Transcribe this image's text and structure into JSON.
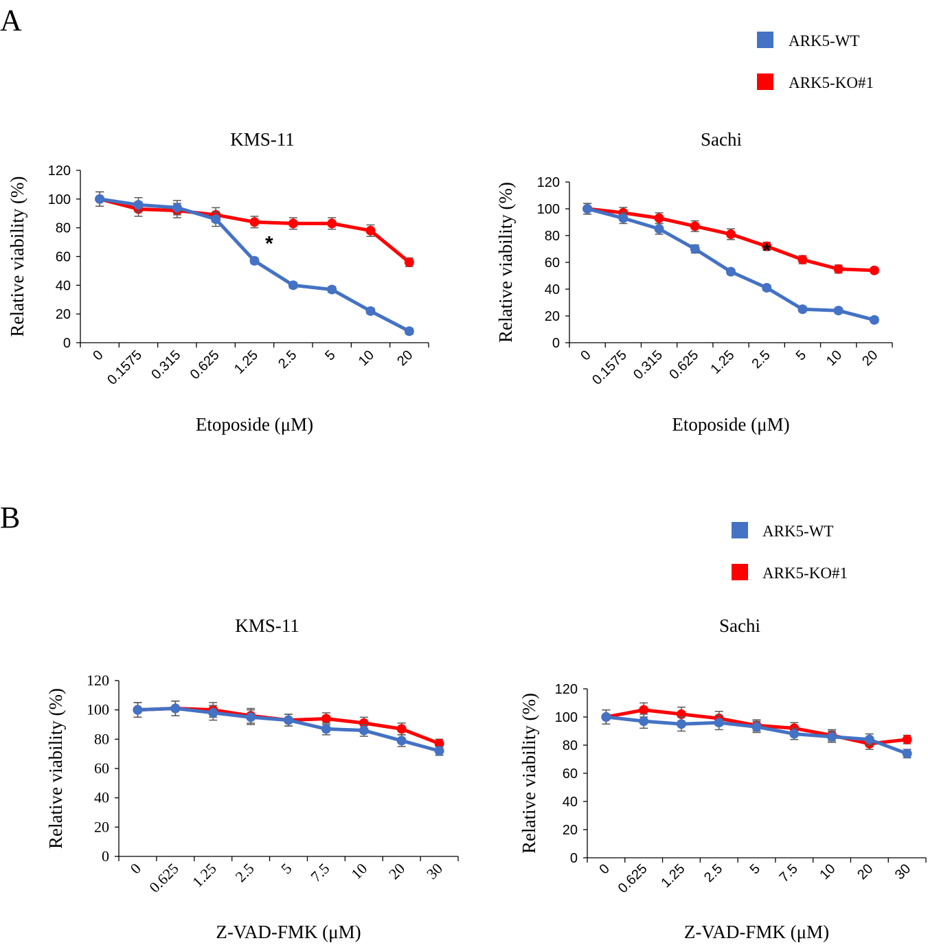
{
  "panels": {
    "a": {
      "letter": "A"
    },
    "b": {
      "letter": "B"
    }
  },
  "legend": {
    "wt_label": "ARK5-WT",
    "ko_label": "ARK5-KO#1",
    "wt_color": "#4472C4",
    "ko_color": "#FF0000"
  },
  "chart_data": [
    {
      "type": "line",
      "panel": "A",
      "title": "KMS-11",
      "xlabel": "Etoposide (μM)",
      "ylabel": "Relative viability (%)",
      "categories": [
        "0",
        "0.1575",
        "0.315",
        "0.625",
        "1.25",
        "2.5",
        "5",
        "10",
        "20"
      ],
      "ylim": [
        0,
        120
      ],
      "yticks": [
        0,
        20,
        40,
        60,
        80,
        100,
        120
      ],
      "series": [
        {
          "name": "ARK5-WT",
          "values": [
            100,
            96,
            94,
            86,
            57,
            40,
            37,
            22,
            8
          ],
          "errors": [
            5,
            5,
            5,
            5,
            2,
            2,
            2,
            2,
            2
          ]
        },
        {
          "name": "ARK5-KO#1",
          "values": [
            100,
            93,
            92,
            89,
            84,
            83,
            83,
            78,
            56
          ],
          "errors": [
            5,
            5,
            5,
            5,
            4,
            4,
            4,
            4,
            3
          ]
        }
      ],
      "annotations": [
        {
          "text": "*",
          "category": "2.5"
        }
      ]
    },
    {
      "type": "line",
      "panel": "A",
      "title": "Sachi",
      "xlabel": "Etoposide (μM)",
      "ylabel": "Relative viability (%)",
      "categories": [
        "0",
        "0.1575",
        "0.315",
        "0.625",
        "1.25",
        "2.5",
        "5",
        "10",
        "20"
      ],
      "ylim": [
        0,
        120
      ],
      "yticks": [
        0,
        20,
        40,
        60,
        80,
        100,
        120
      ],
      "series": [
        {
          "name": "ARK5-WT",
          "values": [
            100,
            93,
            85,
            70,
            53,
            41,
            25,
            24,
            17
          ],
          "errors": [
            4,
            4,
            4,
            3,
            2,
            2,
            2,
            2,
            2
          ]
        },
        {
          "name": "ARK5-KO#1",
          "values": [
            100,
            97,
            93,
            87,
            81,
            72,
            62,
            55,
            54
          ],
          "errors": [
            4,
            4,
            4,
            4,
            4,
            3,
            3,
            3,
            2
          ]
        }
      ],
      "annotations": [
        {
          "text": "*",
          "category": "2.5"
        }
      ]
    },
    {
      "type": "line",
      "panel": "B",
      "title": "KMS-11",
      "xlabel": "Z-VAD-FMK (μM)",
      "ylabel": "Relative viability (%)",
      "categories": [
        "0",
        "0.625",
        "1.25",
        "2.5",
        "5",
        "7.5",
        "10",
        "20",
        "30"
      ],
      "ylim": [
        0,
        120
      ],
      "yticks": [
        0,
        20,
        40,
        60,
        80,
        100,
        120
      ],
      "series": [
        {
          "name": "ARK5-WT",
          "values": [
            100,
            101,
            98,
            95,
            93,
            87,
            86,
            79,
            72
          ],
          "errors": [
            5,
            5,
            5,
            5,
            4,
            4,
            4,
            4,
            3
          ]
        },
        {
          "name": "ARK5-KO#1",
          "values": [
            100,
            101,
            100,
            96,
            93,
            94,
            91,
            87,
            77
          ],
          "errors": [
            5,
            5,
            5,
            5,
            4,
            4,
            4,
            4,
            3
          ]
        }
      ],
      "annotations": []
    },
    {
      "type": "line",
      "panel": "B",
      "title": "Sachi",
      "xlabel": "Z-VAD-FMK (μM)",
      "ylabel": "Relative viability (%)",
      "categories": [
        "0",
        "0.625",
        "1.25",
        "2.5",
        "5",
        "7.5",
        "10",
        "20",
        "30"
      ],
      "ylim": [
        0,
        120
      ],
      "yticks": [
        0,
        20,
        40,
        60,
        80,
        100,
        120
      ],
      "series": [
        {
          "name": "ARK5-WT",
          "values": [
            100,
            97,
            95,
            96,
            93,
            88,
            86,
            84,
            74
          ],
          "errors": [
            5,
            5,
            5,
            5,
            4,
            4,
            4,
            4,
            3
          ]
        },
        {
          "name": "ARK5-KO#1",
          "values": [
            100,
            105,
            102,
            99,
            94,
            92,
            87,
            81,
            84
          ],
          "errors": [
            5,
            5,
            5,
            5,
            4,
            4,
            4,
            4,
            3
          ]
        }
      ],
      "annotations": []
    }
  ]
}
